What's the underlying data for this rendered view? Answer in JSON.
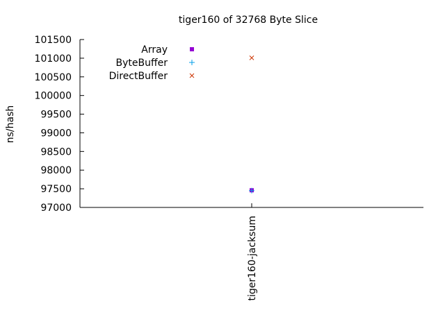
{
  "chart_data": {
    "type": "scatter",
    "title": "tiger160 of 32768 Byte Slice",
    "xlabel": "",
    "ylabel": "ns/hash",
    "categories": [
      "tiger160-jacksum"
    ],
    "ylim": [
      97000,
      101500
    ],
    "yticks": [
      97000,
      97500,
      98000,
      98500,
      99000,
      99500,
      100000,
      100500,
      101000,
      101500
    ],
    "legend_position": "top-left",
    "grid": false,
    "series": [
      {
        "name": "Array",
        "marker": "filled-square",
        "color": "#9400d3",
        "values": [
          97460
        ]
      },
      {
        "name": "ByteBuffer",
        "marker": "plus",
        "color": "#009ee8",
        "values": [
          97450
        ]
      },
      {
        "name": "DirectBuffer",
        "marker": "cross",
        "color": "#cc3300",
        "values": [
          101010
        ]
      }
    ]
  }
}
